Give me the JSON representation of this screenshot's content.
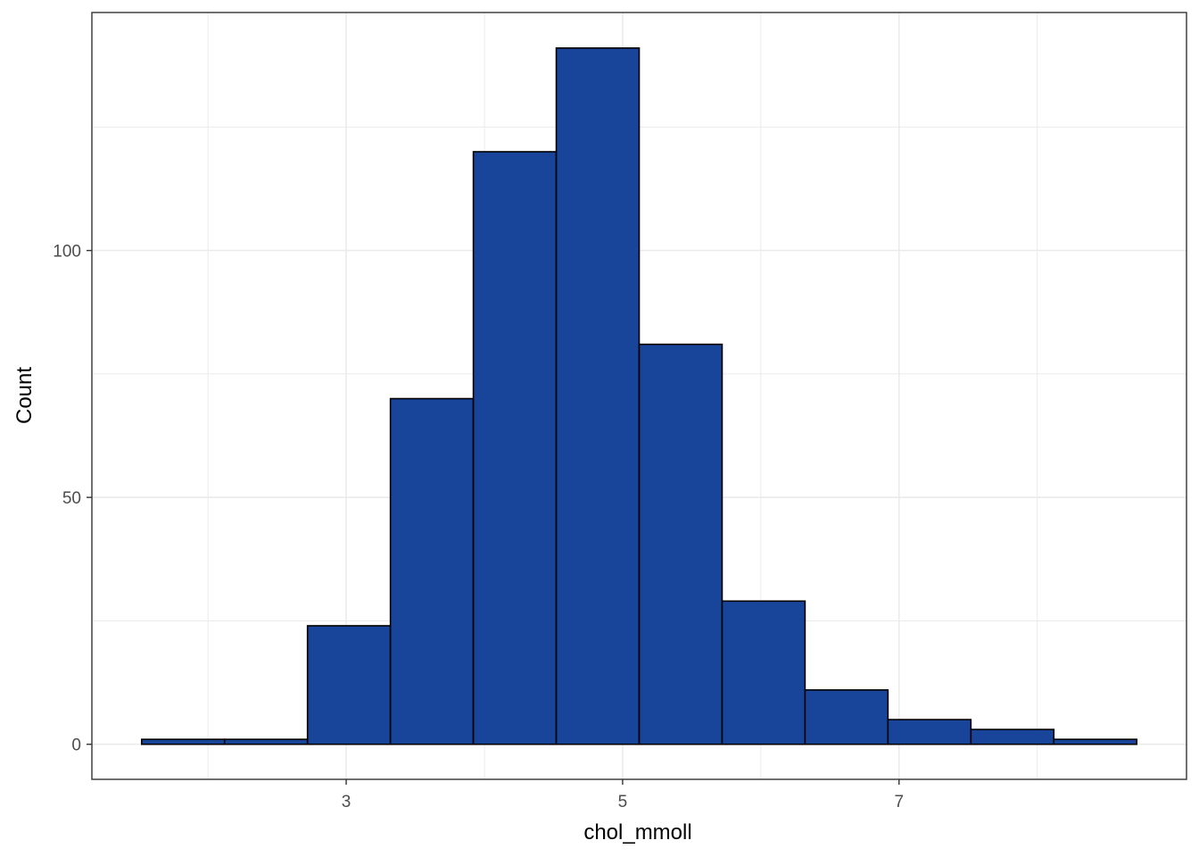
{
  "chart_data": {
    "type": "bar",
    "subtype": "histogram",
    "title": "",
    "xlabel": "chol_mmoll",
    "ylabel": "Count",
    "bin_width": 0.6,
    "bins": [
      {
        "x0": 1.52,
        "x1": 2.12,
        "count": 1
      },
      {
        "x0": 2.12,
        "x1": 2.72,
        "count": 1
      },
      {
        "x0": 2.72,
        "x1": 3.32,
        "count": 24
      },
      {
        "x0": 3.32,
        "x1": 3.92,
        "count": 70
      },
      {
        "x0": 3.92,
        "x1": 4.52,
        "count": 120
      },
      {
        "x0": 4.52,
        "x1": 5.12,
        "count": 141
      },
      {
        "x0": 5.12,
        "x1": 5.72,
        "count": 81
      },
      {
        "x0": 5.72,
        "x1": 6.32,
        "count": 29
      },
      {
        "x0": 6.32,
        "x1": 6.92,
        "count": 11
      },
      {
        "x0": 6.92,
        "x1": 7.52,
        "count": 5
      },
      {
        "x0": 7.52,
        "x1": 8.12,
        "count": 3
      },
      {
        "x0": 8.12,
        "x1": 8.72,
        "count": 1
      }
    ],
    "xlim": [
      1.16,
      9.08
    ],
    "ylim": [
      -7.1,
      148.2
    ],
    "x_ticks": [
      3,
      5,
      7
    ],
    "x_ticks_minor": [
      2,
      4,
      6,
      8
    ],
    "y_ticks": [
      0,
      50,
      100
    ],
    "y_ticks_minor": [
      25,
      75,
      125
    ],
    "grid": true,
    "colors": {
      "bar_fill": "#18449a",
      "bar_stroke": "#000000",
      "grid": "#ebebeb",
      "panel_border": "#333333"
    }
  }
}
